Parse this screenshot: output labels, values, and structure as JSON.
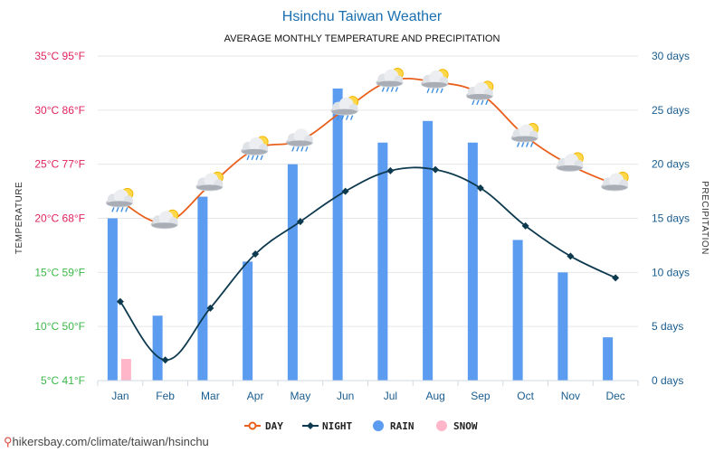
{
  "title": "Hsinchu Taiwan Weather",
  "subtitle": "AVERAGE MONTHLY TEMPERATURE AND PRECIPITATION",
  "footer": "hikersbay.com/climate/taiwan/hsinchu",
  "colors": {
    "day": "#e8601c",
    "night": "#0e3a4f",
    "rain": "#5b9cf0",
    "snow": "#ffb6c8",
    "title": "#1a6fb0",
    "right_axis": "#1a5d8f",
    "grid": "#e6e6e6"
  },
  "chart_data": {
    "type": "bar+line",
    "title": "Hsinchu Taiwan Weather",
    "subtitle": "AVERAGE MONTHLY TEMPERATURE AND PRECIPITATION",
    "categories": [
      "Jan",
      "Feb",
      "Mar",
      "Apr",
      "May",
      "Jun",
      "Jul",
      "Aug",
      "Sep",
      "Oct",
      "Nov",
      "Dec"
    ],
    "y_left": {
      "label": "TEMPERATURE",
      "range": [
        5,
        35
      ],
      "ticks": [
        {
          "value": 35,
          "label": "35°C 95°F",
          "color": "#e0245e"
        },
        {
          "value": 30,
          "label": "30°C 86°F",
          "color": "#e0245e"
        },
        {
          "value": 25,
          "label": "25°C 77°F",
          "color": "#e0245e"
        },
        {
          "value": 20,
          "label": "20°C 68°F",
          "color": "#e0245e"
        },
        {
          "value": 15,
          "label": "15°C 59°F",
          "color": "#3cb84a"
        },
        {
          "value": 10,
          "label": "10°C 50°F",
          "color": "#3cb84a"
        },
        {
          "value": 5,
          "label": "5°C 41°F",
          "color": "#3cb84a"
        }
      ]
    },
    "y_right": {
      "label": "PRECIPITATION",
      "range": [
        0,
        30
      ],
      "ticks": [
        {
          "value": 30,
          "label": "30 days"
        },
        {
          "value": 25,
          "label": "25 days"
        },
        {
          "value": 20,
          "label": "20 days"
        },
        {
          "value": 15,
          "label": "15 days"
        },
        {
          "value": 10,
          "label": "10 days"
        },
        {
          "value": 5,
          "label": "5 days"
        },
        {
          "value": 0,
          "label": "0 days"
        }
      ]
    },
    "series": [
      {
        "name": "DAY",
        "type": "line",
        "axis": "left",
        "values": [
          21.6,
          19.6,
          23.1,
          26.4,
          27.2,
          30.1,
          32.7,
          32.6,
          31.5,
          27.6,
          24.9,
          23.1
        ]
      },
      {
        "name": "NIGHT",
        "type": "line",
        "axis": "left",
        "values": [
          12.3,
          6.9,
          11.7,
          16.7,
          19.7,
          22.5,
          24.4,
          24.5,
          22.8,
          19.3,
          16.5,
          14.5
        ]
      },
      {
        "name": "RAIN",
        "type": "bar",
        "axis": "right",
        "values": [
          15,
          6,
          17,
          11,
          20,
          27,
          22,
          24,
          22,
          13,
          10,
          4
        ]
      },
      {
        "name": "SNOW",
        "type": "bar",
        "axis": "right",
        "values": [
          2,
          0,
          0,
          0,
          0,
          0,
          0,
          0,
          0,
          0,
          0,
          0
        ]
      }
    ],
    "weather_icons": [
      "sun-cloud-rain",
      "sun-cloud",
      "sun-cloud",
      "sun-cloud-rain",
      "cloud-rain",
      "sun-cloud-rain",
      "sun-cloud-rain",
      "sun-cloud-rain",
      "sun-cloud-rain",
      "sun-cloud-rain",
      "sun-cloud",
      "sun-cloud"
    ],
    "legend": [
      {
        "name": "DAY",
        "marker": "line-circle"
      },
      {
        "name": "NIGHT",
        "marker": "line-diamond"
      },
      {
        "name": "RAIN",
        "marker": "circle"
      },
      {
        "name": "SNOW",
        "marker": "circle"
      }
    ],
    "legend_position": "bottom-center",
    "grid": true
  }
}
